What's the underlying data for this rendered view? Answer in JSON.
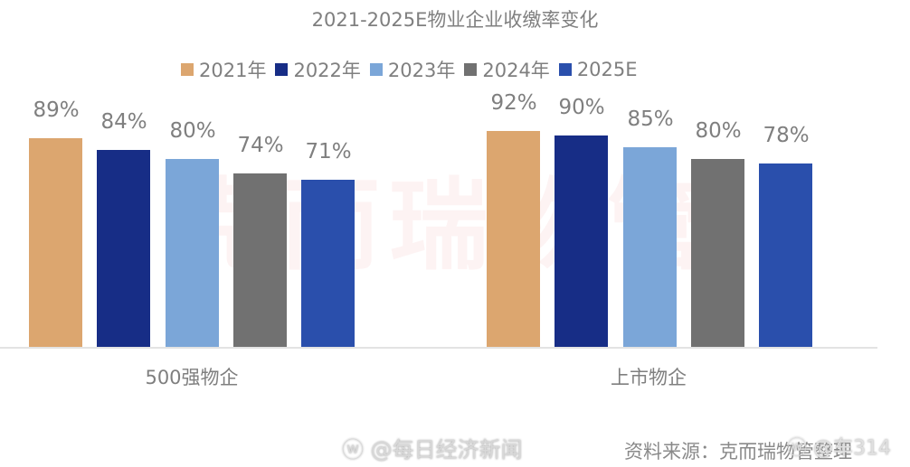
{
  "chart_data": {
    "type": "bar",
    "title": "2021-2025E物业企业收缴率变化",
    "categories": [
      "500强物企",
      "上市物企"
    ],
    "series": [
      {
        "name": "2021年",
        "color": "#dca66f",
        "values": [
          89,
          92
        ],
        "labels": [
          "89%",
          "92%"
        ]
      },
      {
        "name": "2022年",
        "color": "#172d86",
        "values": [
          84,
          90
        ],
        "labels": [
          "84%",
          "90%"
        ]
      },
      {
        "name": "2023年",
        "color": "#7ba6d8",
        "values": [
          80,
          85
        ],
        "labels": [
          "80%",
          "85%"
        ]
      },
      {
        "name": "2024年",
        "color": "#717171",
        "values": [
          74,
          80
        ],
        "labels": [
          "74%",
          "80%"
        ]
      },
      {
        "name": "2025E",
        "color": "#2a4fac",
        "values": [
          71,
          78
        ],
        "labels": [
          "71%",
          "78%"
        ]
      }
    ],
    "xlabel": "",
    "ylabel": "",
    "unit": "%",
    "legend_position": "top",
    "grid": false
  },
  "watermark": "克而瑞物管",
  "footer": {
    "weibo_handle": "@每日经济新闻",
    "source": "资料来源：克而瑞物管整理",
    "overlay_handle": "@车314"
  }
}
